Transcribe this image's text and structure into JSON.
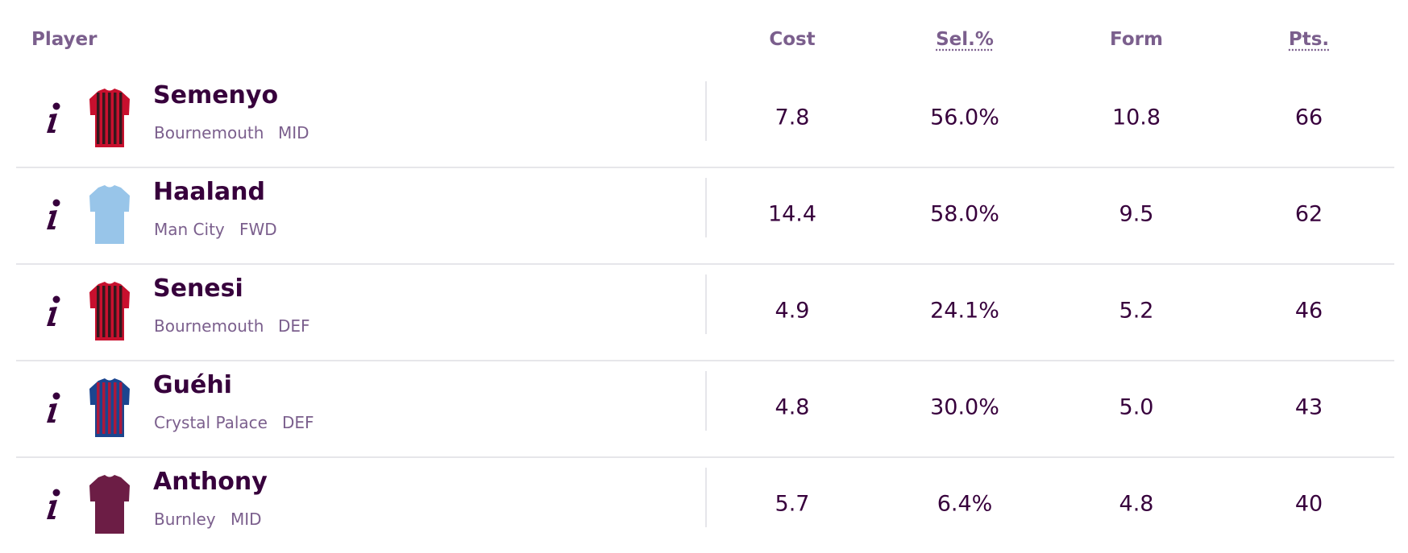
{
  "header": {
    "player": "Player",
    "cost": "Cost",
    "selected": "Sel.%",
    "form": "Form",
    "points": "Pts."
  },
  "table": {
    "rows": [
      {
        "name": "Semenyo",
        "team": "Bournemouth",
        "position": "MID",
        "cost": "7.8",
        "selected": "56.0%",
        "form": "10.8",
        "points": "66"
      },
      {
        "name": "Haaland",
        "team": "Man City",
        "position": "FWD",
        "cost": "14.4",
        "selected": "58.0%",
        "form": "9.5",
        "points": "62"
      },
      {
        "name": "Senesi",
        "team": "Bournemouth",
        "position": "DEF",
        "cost": "4.9",
        "selected": "24.1%",
        "form": "5.2",
        "points": "46"
      },
      {
        "name": "Guéhi",
        "team": "Crystal Palace",
        "position": "DEF",
        "cost": "4.8",
        "selected": "30.0%",
        "form": "5.0",
        "points": "43"
      },
      {
        "name": "Anthony",
        "team": "Burnley",
        "position": "MID",
        "cost": "5.7",
        "selected": "6.4%",
        "form": "4.8",
        "points": "40"
      }
    ]
  }
}
